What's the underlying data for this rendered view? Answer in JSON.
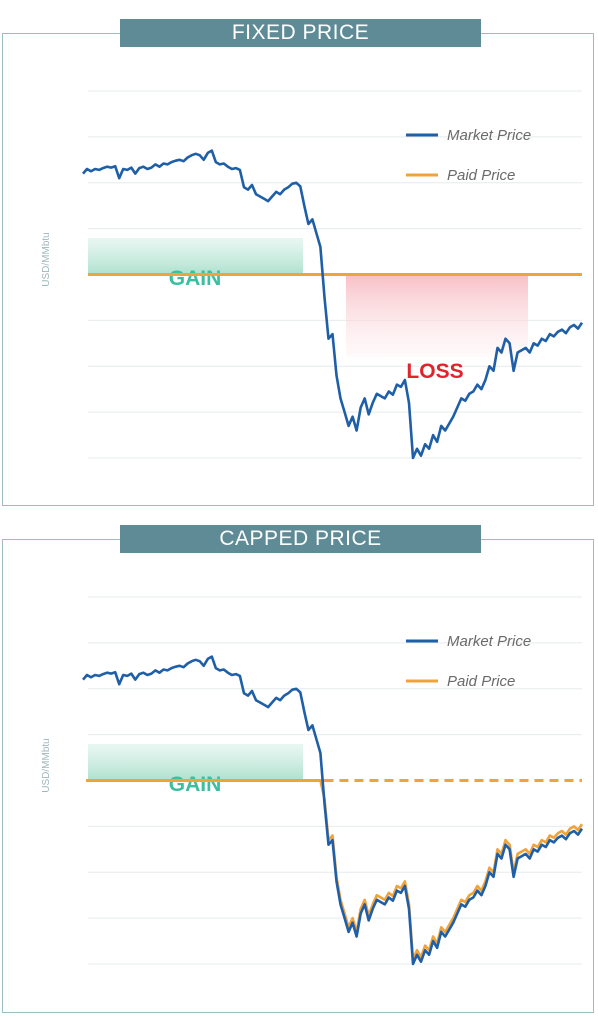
{
  "chart_data": [
    {
      "type": "line",
      "title": "FIXED PRICE",
      "ylabel": "USD/MMbtu",
      "legend": {
        "placement": "top-right"
      },
      "grid": true,
      "annotations": {
        "gain": "GAIN",
        "loss": "LOSS"
      },
      "series": [
        {
          "name": "Market Price",
          "color": "#1f5fa8",
          "values": [
            6.2,
            6.3,
            6.25,
            6.3,
            6.28,
            6.32,
            6.35,
            6.33,
            6.36,
            6.1,
            6.3,
            6.28,
            6.33,
            6.2,
            6.32,
            6.35,
            6.3,
            6.33,
            6.4,
            6.35,
            6.42,
            6.4,
            6.45,
            6.48,
            6.5,
            6.47,
            6.55,
            6.6,
            6.63,
            6.6,
            6.5,
            6.65,
            6.7,
            6.45,
            6.4,
            6.42,
            6.35,
            6.3,
            6.32,
            6.28,
            5.9,
            5.85,
            5.95,
            5.75,
            5.7,
            5.65,
            5.6,
            5.7,
            5.8,
            5.75,
            5.85,
            5.9,
            5.98,
            6.0,
            5.92,
            5.5,
            5.1,
            5.2,
            4.9,
            4.6,
            3.5,
            2.6,
            2.7,
            1.8,
            1.3,
            1.0,
            0.7,
            0.9,
            0.6,
            1.1,
            1.3,
            0.95,
            1.2,
            1.4,
            1.35,
            1.3,
            1.45,
            1.38,
            1.6,
            1.55,
            1.7,
            1.2,
            0.0,
            0.2,
            0.05,
            0.3,
            0.2,
            0.5,
            0.35,
            0.7,
            0.6,
            0.75,
            0.9,
            1.1,
            1.3,
            1.25,
            1.4,
            1.45,
            1.6,
            1.5,
            1.7,
            2.0,
            1.9,
            2.4,
            2.3,
            2.6,
            2.5,
            1.9,
            2.3,
            2.35,
            2.4,
            2.3,
            2.5,
            2.45,
            2.6,
            2.55,
            2.7,
            2.65,
            2.75,
            2.8,
            2.72,
            2.85,
            2.9,
            2.82,
            2.95
          ]
        },
        {
          "name": "Paid Price",
          "color": "#f0a33a",
          "values": [
            4.0
          ]
        }
      ]
    },
    {
      "type": "line",
      "title": "CAPPED PRICE",
      "ylabel": "USD/MMbtu",
      "legend": {
        "placement": "top-right"
      },
      "grid": true,
      "annotations": {
        "gain": "GAIN"
      },
      "series": [
        {
          "name": "Market Price",
          "color": "#1f5fa8",
          "values": [
            6.2,
            6.3,
            6.25,
            6.3,
            6.28,
            6.32,
            6.35,
            6.33,
            6.36,
            6.1,
            6.3,
            6.28,
            6.33,
            6.2,
            6.32,
            6.35,
            6.3,
            6.33,
            6.4,
            6.35,
            6.42,
            6.4,
            6.45,
            6.48,
            6.5,
            6.47,
            6.55,
            6.6,
            6.63,
            6.6,
            6.5,
            6.65,
            6.7,
            6.45,
            6.4,
            6.42,
            6.35,
            6.3,
            6.32,
            6.28,
            5.9,
            5.85,
            5.95,
            5.75,
            5.7,
            5.65,
            5.6,
            5.7,
            5.8,
            5.75,
            5.85,
            5.9,
            5.98,
            6.0,
            5.92,
            5.5,
            5.1,
            5.2,
            4.9,
            4.6,
            3.5,
            2.6,
            2.7,
            1.8,
            1.3,
            1.0,
            0.7,
            0.9,
            0.6,
            1.1,
            1.3,
            0.95,
            1.2,
            1.4,
            1.35,
            1.3,
            1.45,
            1.38,
            1.6,
            1.55,
            1.7,
            1.2,
            0.0,
            0.2,
            0.05,
            0.3,
            0.2,
            0.5,
            0.35,
            0.7,
            0.6,
            0.75,
            0.9,
            1.1,
            1.3,
            1.25,
            1.4,
            1.45,
            1.6,
            1.5,
            1.7,
            2.0,
            1.9,
            2.4,
            2.3,
            2.6,
            2.5,
            1.9,
            2.3,
            2.35,
            2.4,
            2.3,
            2.5,
            2.45,
            2.6,
            2.55,
            2.7,
            2.65,
            2.75,
            2.8,
            2.72,
            2.85,
            2.9,
            2.82,
            2.95
          ]
        },
        {
          "name": "Paid Price",
          "color": "#f0a33a",
          "cap": 4.0,
          "offset": 0.1
        }
      ]
    }
  ]
}
